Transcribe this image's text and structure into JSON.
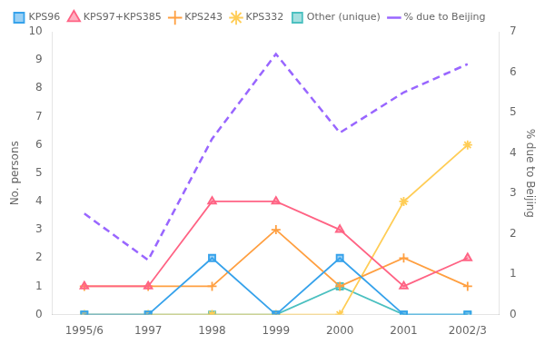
{
  "chart_data": {
    "type": "line",
    "categories": [
      "1995/6",
      "1997",
      "1998",
      "1999",
      "2000",
      "2001",
      "2002/3"
    ],
    "series": [
      {
        "name": "KPS96",
        "values": [
          0,
          0,
          2,
          0,
          2,
          0,
          0
        ],
        "marker": "square",
        "line_style": "solid"
      },
      {
        "name": "KPS97+KPS385",
        "values": [
          1,
          1,
          4,
          4,
          3,
          1,
          2
        ],
        "marker": "triangle",
        "line_style": "solid"
      },
      {
        "name": "KPS243",
        "values": [
          1,
          1,
          1,
          3,
          1,
          2,
          1
        ],
        "marker": "plus",
        "line_style": "solid"
      },
      {
        "name": "KPS332",
        "values": [
          0,
          0,
          0,
          0,
          0,
          4,
          6
        ],
        "marker": "star",
        "line_style": "solid"
      },
      {
        "name": "Other (unique)",
        "values": [
          0,
          0,
          0,
          0,
          1,
          0,
          0
        ],
        "marker": "square",
        "line_style": "solid"
      },
      {
        "name": "% due to Beijing",
        "values": [
          2.5,
          1.35,
          4.35,
          6.45,
          4.5,
          5.5,
          6.2
        ],
        "marker": "none",
        "line_style": "dashed",
        "axis": "y2"
      }
    ],
    "ylabel": "No. persons",
    "y2label": "% due to Beijing",
    "ylim": [
      0,
      10
    ],
    "yticks": [
      0,
      1,
      2,
      3,
      4,
      5,
      6,
      7,
      8,
      9,
      10
    ],
    "y2lim": [
      0,
      7
    ],
    "y2ticks": [
      0,
      1,
      2,
      3,
      4,
      5,
      6,
      7
    ],
    "grid": false,
    "legend": "upper left"
  }
}
